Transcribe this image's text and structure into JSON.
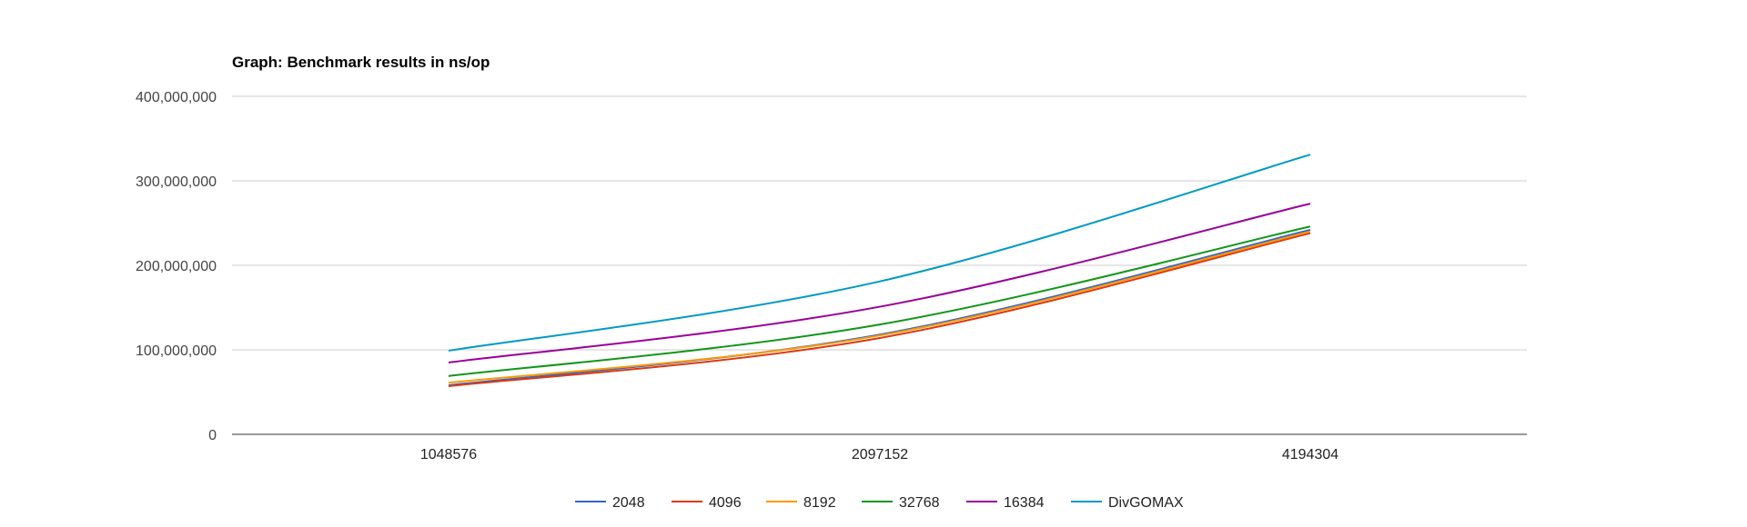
{
  "chart_data": {
    "type": "line",
    "title": "Graph: Benchmark results in ns/op",
    "categories": [
      "1048576",
      "2097152",
      "4194304"
    ],
    "ylim": [
      0,
      400000000
    ],
    "yticks": [
      0,
      100000000,
      200000000,
      300000000,
      400000000
    ],
    "ytick_labels": [
      "0",
      "100,000,000",
      "200,000,000",
      "300,000,000",
      "400,000,000"
    ],
    "grid": true,
    "curve": "smooth",
    "legend_position": "bottom",
    "series": [
      {
        "name": "2048",
        "color": "#3366cc",
        "values": [
          58000000,
          118000000,
          242000000
        ]
      },
      {
        "name": "4096",
        "color": "#dc3912",
        "values": [
          57000000,
          114000000,
          238000000
        ]
      },
      {
        "name": "8192",
        "color": "#ff9900",
        "values": [
          61000000,
          117000000,
          240000000
        ]
      },
      {
        "name": "32768",
        "color": "#109618",
        "values": [
          69000000,
          130000000,
          246000000
        ]
      },
      {
        "name": "16384",
        "color": "#990099",
        "values": [
          85000000,
          151000000,
          273000000
        ]
      },
      {
        "name": "DivGOMAX",
        "color": "#0099c6",
        "values": [
          99000000,
          181000000,
          331000000
        ]
      }
    ]
  }
}
